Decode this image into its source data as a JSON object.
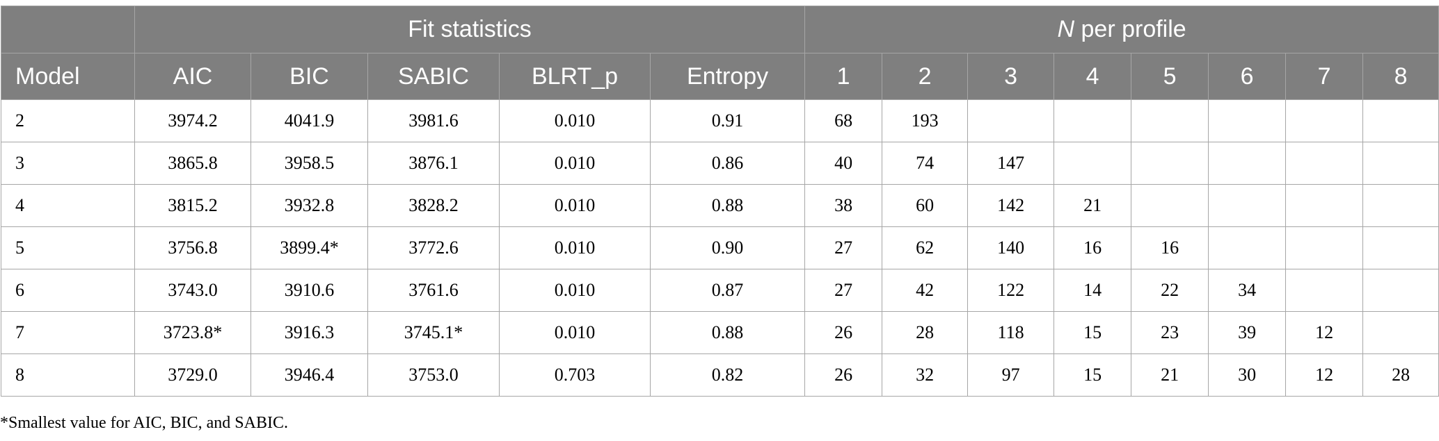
{
  "header": {
    "group_fit": "Fit statistics",
    "group_n_italic": "N",
    "group_n_rest": " per profile",
    "columns": [
      "Model",
      "AIC",
      "BIC",
      "SABIC",
      "BLRT_p",
      "Entropy",
      "1",
      "2",
      "3",
      "4",
      "5",
      "6",
      "7",
      "8"
    ]
  },
  "rows": [
    [
      "2",
      "3974.2",
      "4041.9",
      "3981.6",
      "0.010",
      "0.91",
      "68",
      "193",
      "",
      "",
      "",
      "",
      "",
      ""
    ],
    [
      "3",
      "3865.8",
      "3958.5",
      "3876.1",
      "0.010",
      "0.86",
      "40",
      "74",
      "147",
      "",
      "",
      "",
      "",
      ""
    ],
    [
      "4",
      "3815.2",
      "3932.8",
      "3828.2",
      "0.010",
      "0.88",
      "38",
      "60",
      "142",
      "21",
      "",
      "",
      "",
      ""
    ],
    [
      "5",
      "3756.8",
      "3899.4*",
      "3772.6",
      "0.010",
      "0.90",
      "27",
      "62",
      "140",
      "16",
      "16",
      "",
      "",
      ""
    ],
    [
      "6",
      "3743.0",
      "3910.6",
      "3761.6",
      "0.010",
      "0.87",
      "27",
      "42",
      "122",
      "14",
      "22",
      "34",
      "",
      ""
    ],
    [
      "7",
      "3723.8*",
      "3916.3",
      "3745.1*",
      "0.010",
      "0.88",
      "26",
      "28",
      "118",
      "15",
      "23",
      "39",
      "12",
      ""
    ],
    [
      "8",
      "3729.0",
      "3946.4",
      "3753.0",
      "0.703",
      "0.82",
      "26",
      "32",
      "97",
      "15",
      "21",
      "30",
      "12",
      "28"
    ]
  ],
  "footnote": "*Smallest value for AIC, BIC, and SABIC."
}
